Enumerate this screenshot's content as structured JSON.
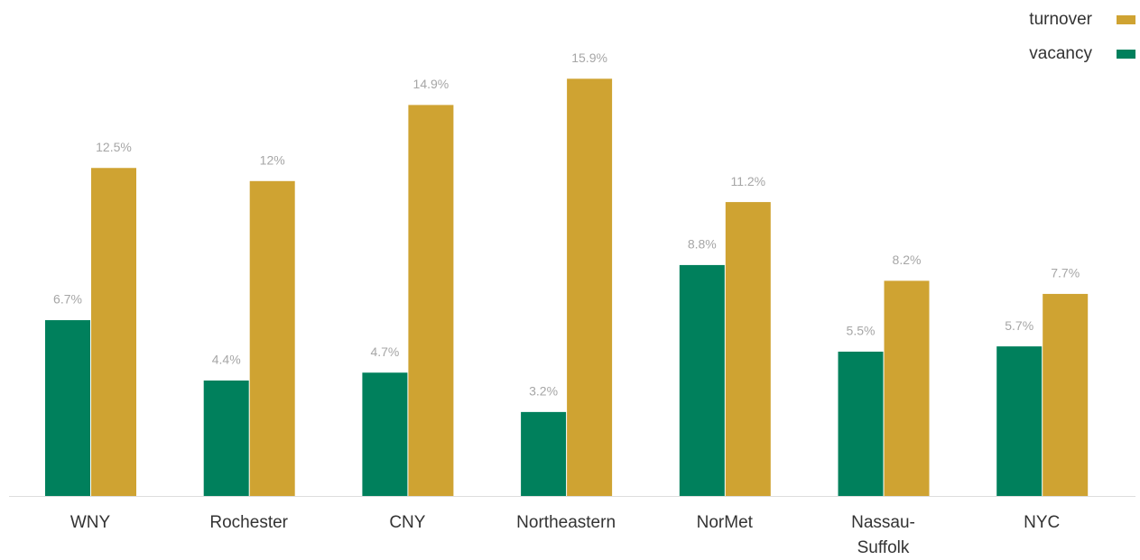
{
  "chart_data": {
    "type": "bar",
    "categories": [
      "WNY",
      "Rochester",
      "CNY",
      "Northeastern",
      "NorMet",
      "Nassau-Suffolk",
      "NYC"
    ],
    "series": [
      {
        "name": "turnover",
        "color": "#cfa332",
        "values": [
          12.5,
          12,
          14.9,
          15.9,
          11.2,
          8.2,
          7.7
        ],
        "value_labels": [
          "12.5%",
          "12%",
          "14.9%",
          "15.9%",
          "11.2%",
          "8.2%",
          "7.7%"
        ]
      },
      {
        "name": "vacancy",
        "color": "#00805c",
        "values": [
          6.7,
          4.4,
          4.7,
          3.2,
          8.8,
          5.5,
          5.7
        ],
        "value_labels": [
          "6.7%",
          "4.4%",
          "4.7%",
          "3.2%",
          "8.8%",
          "5.5%",
          "5.7%"
        ]
      }
    ],
    "legend": "top-right"
  }
}
